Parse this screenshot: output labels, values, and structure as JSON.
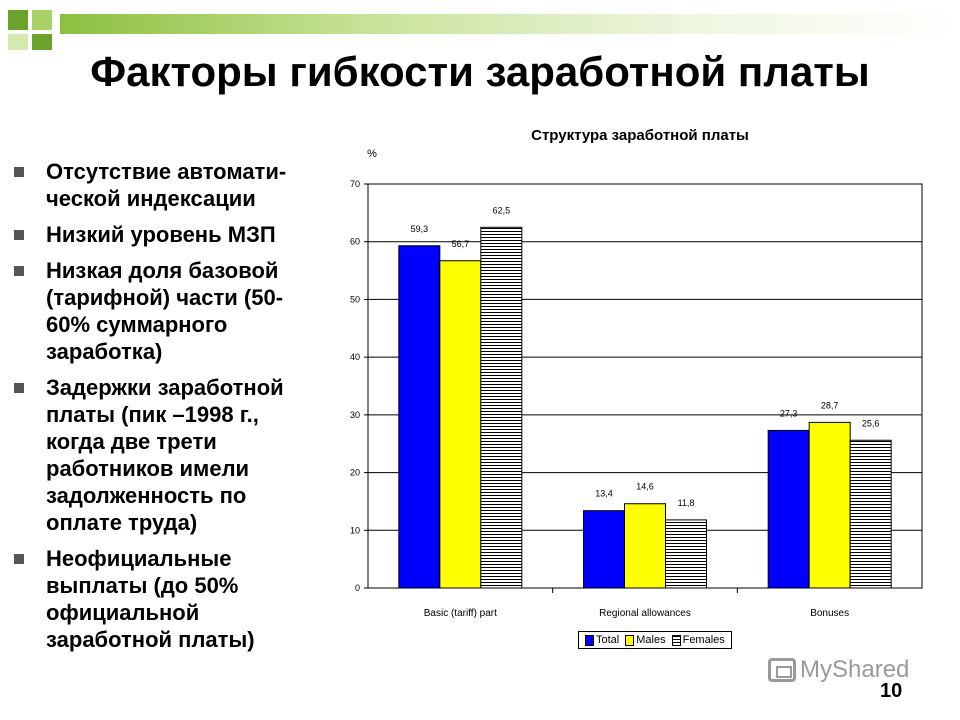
{
  "slide": {
    "title": "Факторы гибкости заработной платы",
    "page_number": "10",
    "watermark": "MyShared",
    "bullets": [
      "Отсутствие автомати-\nческой индексации",
      "Низкий уровень МЗП",
      "Низкая доля базовой\n(тарифной) части (50-\n60% суммарного\nзаработка)",
      "Задержки заработной\nплаты (пик –1998 г.,\nкогда две трети\nработников имели\nзадолженность по\nоплате труда)",
      "Неофициальные\nвыплаты (до 50%\nофициальной\nзаработной платы)"
    ]
  },
  "colors": {
    "accent_green": "#8cbf3f",
    "total": "#0000ff",
    "males": "#ffff00",
    "females_hatch": "#000000"
  },
  "icons": [
    "bullet-square-icon",
    "myshared-logo-icon"
  ],
  "chart_data": {
    "type": "bar",
    "title": "Структура заработной платы",
    "ylabel": "%",
    "xlabel": "",
    "ylim": [
      0,
      70
    ],
    "yticks": [
      0,
      10,
      20,
      30,
      40,
      50,
      60,
      70
    ],
    "grid": true,
    "legend_position": "bottom",
    "categories": [
      "Basic (tariff) part",
      "Regional allowances",
      "Bonuses"
    ],
    "series": [
      {
        "name": "Total",
        "values": [
          59.3,
          13.4,
          27.3
        ],
        "labels": [
          "59,3",
          "13,4",
          "27,3"
        ],
        "color": "#0000ff",
        "pattern": "solid"
      },
      {
        "name": "Males",
        "values": [
          56.7,
          14.6,
          28.7
        ],
        "labels": [
          "56,7",
          "14,6",
          "28,7"
        ],
        "color": "#ffff00",
        "pattern": "solid"
      },
      {
        "name": "Females",
        "values": [
          62.5,
          11.8,
          25.6
        ],
        "labels": [
          "62,5",
          "11,8",
          "25,6"
        ],
        "color": "#ffffff",
        "pattern": "horizontal-lines"
      }
    ]
  }
}
